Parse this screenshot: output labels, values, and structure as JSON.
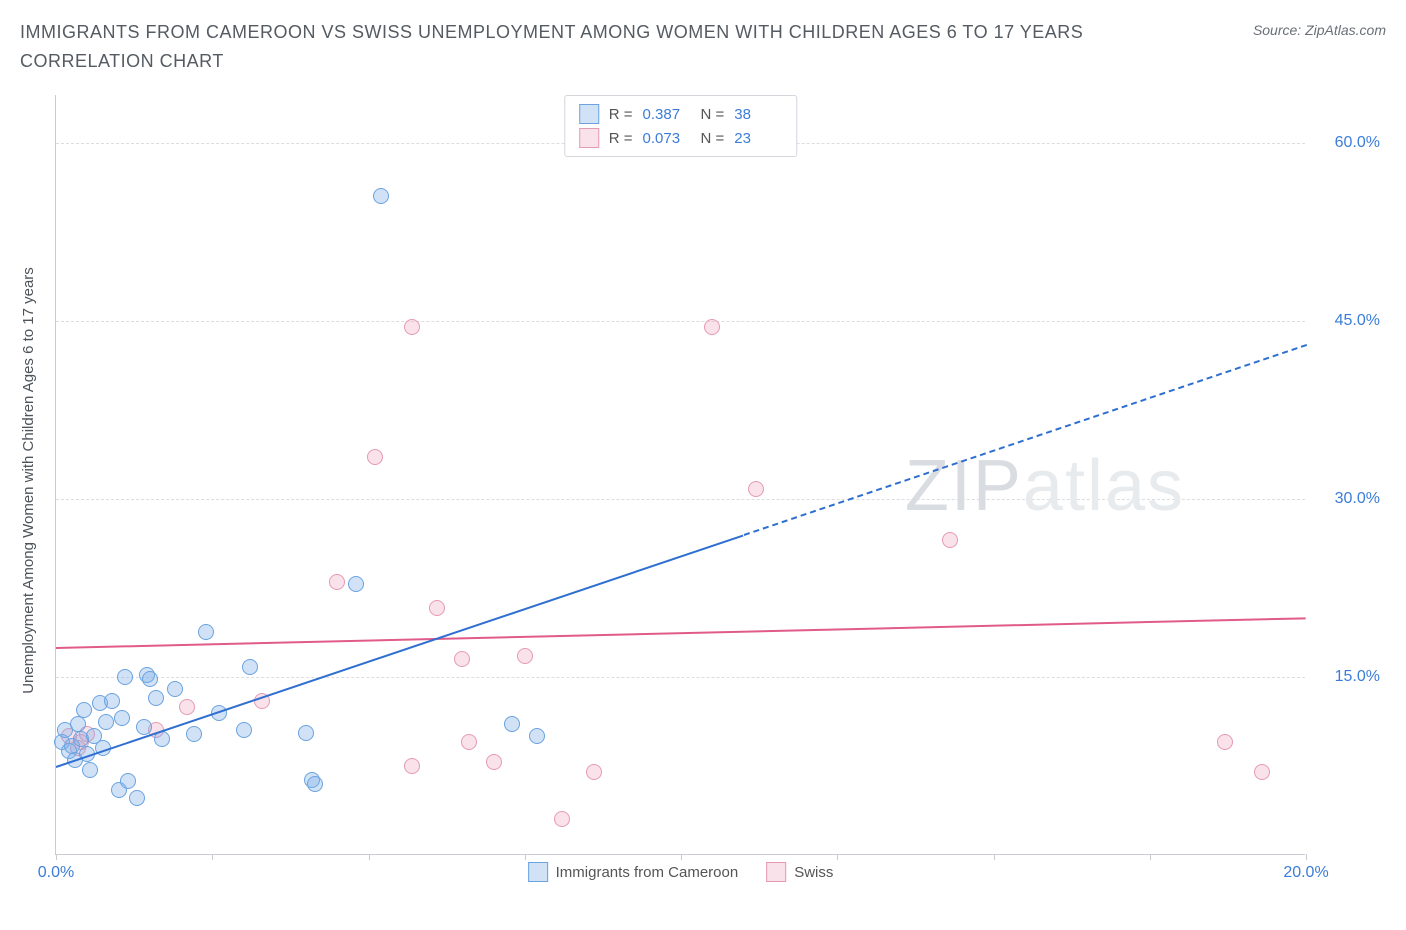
{
  "title": "IMMIGRANTS FROM CAMEROON VS SWISS UNEMPLOYMENT AMONG WOMEN WITH CHILDREN AGES 6 TO 17 YEARS CORRELATION CHART",
  "source": "Source: ZipAtlas.com",
  "watermark_a": "ZIP",
  "watermark_b": "atlas",
  "chart": {
    "type": "scatter",
    "ylabel": "Unemployment Among Women with Children Ages 6 to 17 years",
    "xlim": [
      0,
      20
    ],
    "ylim": [
      0,
      64
    ],
    "xtick_positions": [
      0,
      2.5,
      5,
      7.5,
      10,
      12.5,
      15,
      17.5,
      20
    ],
    "xtick_labels": {
      "0": "0.0%",
      "20": "20.0%"
    },
    "ytick_positions": [
      15,
      30,
      45,
      60
    ],
    "ytick_labels": {
      "15": "15.0%",
      "30": "30.0%",
      "45": "45.0%",
      "60": "60.0%"
    },
    "grid_color": "#dadde1",
    "axis_color": "#c9cdd2",
    "background_color": "#ffffff",
    "marker_radius": 8,
    "series": {
      "a": {
        "name": "Immigrants from Cameroon",
        "color_fill": "rgba(124,172,232,0.35)",
        "color_stroke": "#6aa3e0",
        "trend_color": "#2f6fd0",
        "R": "0.387",
        "N": "38",
        "trend": {
          "x1": 0,
          "y1": 7.5,
          "x2": 11,
          "y2": 27,
          "dash_from_x": 11,
          "dash_to_x": 20,
          "dash_to_y": 43
        },
        "points": [
          [
            0.1,
            9.5
          ],
          [
            0.15,
            10.5
          ],
          [
            0.2,
            8.8
          ],
          [
            0.25,
            9.2
          ],
          [
            0.3,
            8.0
          ],
          [
            0.35,
            11.0
          ],
          [
            0.4,
            9.8
          ],
          [
            0.45,
            12.2
          ],
          [
            0.5,
            8.5
          ],
          [
            0.55,
            7.2
          ],
          [
            0.6,
            10.0
          ],
          [
            0.7,
            12.8
          ],
          [
            0.75,
            9.0
          ],
          [
            0.8,
            11.2
          ],
          [
            0.9,
            13.0
          ],
          [
            1.0,
            5.5
          ],
          [
            1.05,
            11.5
          ],
          [
            1.1,
            15.0
          ],
          [
            1.15,
            6.2
          ],
          [
            1.3,
            4.8
          ],
          [
            1.4,
            10.8
          ],
          [
            1.45,
            15.2
          ],
          [
            1.5,
            14.8
          ],
          [
            1.6,
            13.2
          ],
          [
            1.7,
            9.8
          ],
          [
            1.9,
            14.0
          ],
          [
            2.2,
            10.2
          ],
          [
            2.4,
            18.8
          ],
          [
            2.6,
            12.0
          ],
          [
            3.0,
            10.5
          ],
          [
            3.1,
            15.8
          ],
          [
            4.0,
            10.3
          ],
          [
            4.1,
            6.3
          ],
          [
            4.15,
            6.0
          ],
          [
            4.8,
            22.8
          ],
          [
            5.2,
            55.5
          ],
          [
            7.3,
            11.0
          ],
          [
            7.7,
            10.0
          ]
        ]
      },
      "b": {
        "name": "Swiss",
        "color_fill": "rgba(240,160,185,0.30)",
        "color_stroke": "#e49ab3",
        "trend_color": "#e05a8a",
        "R": "0.073",
        "N": "23",
        "trend": {
          "x1": 0,
          "y1": 17.5,
          "x2": 20,
          "y2": 20.0
        },
        "points": [
          [
            0.2,
            10.0
          ],
          [
            0.35,
            9.0
          ],
          [
            0.4,
            9.5
          ],
          [
            0.5,
            10.2
          ],
          [
            1.6,
            10.5
          ],
          [
            2.1,
            12.5
          ],
          [
            3.3,
            13.0
          ],
          [
            4.5,
            23.0
          ],
          [
            5.1,
            33.5
          ],
          [
            5.7,
            7.5
          ],
          [
            5.7,
            44.5
          ],
          [
            6.1,
            20.8
          ],
          [
            6.5,
            16.5
          ],
          [
            6.6,
            9.5
          ],
          [
            7.0,
            7.8
          ],
          [
            7.5,
            16.8
          ],
          [
            8.1,
            3.0
          ],
          [
            8.6,
            7.0
          ],
          [
            10.5,
            44.5
          ],
          [
            11.2,
            30.8
          ],
          [
            14.3,
            26.5
          ],
          [
            18.7,
            9.5
          ],
          [
            19.3,
            7.0
          ]
        ]
      }
    },
    "legend_top_label_R": "R =",
    "legend_top_label_N": "N ="
  }
}
